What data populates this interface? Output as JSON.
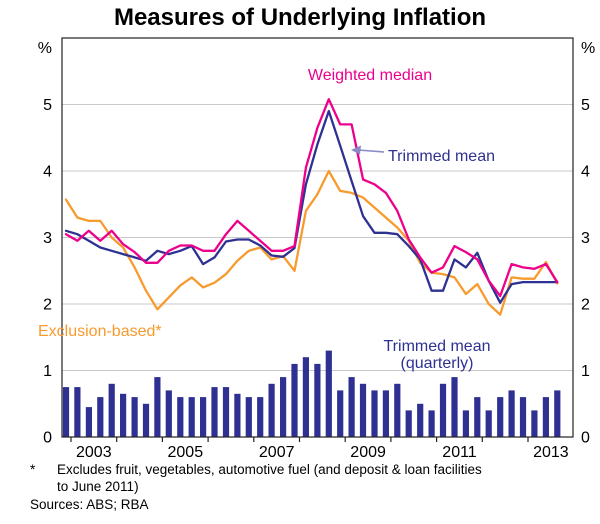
{
  "title": "Measures of Underlying Inflation",
  "axes": {
    "unit": "%",
    "y_ticks": [
      0,
      1,
      2,
      3,
      4,
      5
    ],
    "y_gridlines": [
      1,
      2,
      3,
      4,
      5
    ],
    "y_max": 6,
    "x_tick_years": [
      2003,
      2004,
      2005,
      2006,
      2007,
      2008,
      2009,
      2010,
      2011,
      2012,
      2013
    ],
    "x_year_labels": [
      2003,
      2005,
      2007,
      2009,
      2011,
      2013
    ]
  },
  "annotations": {
    "weighted_median": "Weighted median",
    "trimmed_mean": "Trimmed mean",
    "exclusion_based": "Exclusion-based*",
    "trimmed_mean_quarterly_line1": "Trimmed mean",
    "trimmed_mean_quarterly_line2": "(quarterly)"
  },
  "footnote": {
    "marker": "*",
    "line1": "Excludes fruit, vegetables, automotive fuel (and deposit & loan facilities",
    "line2": "to June 2011)",
    "sources": "Sources: ABS; RBA"
  },
  "colors": {
    "weighted_median": "#EC008C",
    "trimmed_mean": "#2E3192",
    "exclusion_based": "#F79B2E",
    "bars": "#2E3192",
    "gridline": "#C9C9C9",
    "axis": "#222222",
    "arrow": "#8A8AC8"
  },
  "chart_data": {
    "type": "line+bar",
    "title": "Measures of Underlying Inflation",
    "ylabel": "%",
    "ylim": [
      0,
      6
    ],
    "grid": true,
    "x_quarters": [
      "2002 Q4",
      "2003 Q1",
      "2003 Q2",
      "2003 Q3",
      "2003 Q4",
      "2004 Q1",
      "2004 Q2",
      "2004 Q3",
      "2004 Q4",
      "2005 Q1",
      "2005 Q2",
      "2005 Q3",
      "2005 Q4",
      "2006 Q1",
      "2006 Q2",
      "2006 Q3",
      "2006 Q4",
      "2007 Q1",
      "2007 Q2",
      "2007 Q3",
      "2007 Q4",
      "2008 Q1",
      "2008 Q2",
      "2008 Q3",
      "2008 Q4",
      "2009 Q1",
      "2009 Q2",
      "2009 Q3",
      "2009 Q4",
      "2010 Q1",
      "2010 Q2",
      "2010 Q3",
      "2010 Q4",
      "2011 Q1",
      "2011 Q2",
      "2011 Q3",
      "2011 Q4",
      "2012 Q1",
      "2012 Q2",
      "2012 Q3",
      "2012 Q4",
      "2013 Q1",
      "2013 Q2",
      "2013 Q3"
    ],
    "series": [
      {
        "name": "Weighted median",
        "type": "line",
        "color": "#EC008C",
        "values": [
          3.05,
          2.95,
          3.1,
          2.95,
          3.1,
          2.9,
          2.78,
          2.62,
          2.62,
          2.8,
          2.88,
          2.88,
          2.8,
          2.8,
          3.05,
          3.25,
          3.1,
          2.95,
          2.8,
          2.8,
          2.87,
          4.05,
          4.65,
          5.08,
          4.7,
          4.7,
          3.87,
          3.8,
          3.67,
          3.4,
          2.97,
          2.7,
          2.47,
          2.55,
          2.87,
          2.78,
          2.67,
          2.35,
          2.12,
          2.6,
          2.55,
          2.53,
          2.6,
          2.33
        ]
      },
      {
        "name": "Trimmed mean",
        "type": "line",
        "color": "#2E3192",
        "values": [
          3.1,
          3.05,
          2.95,
          2.85,
          2.8,
          2.75,
          2.7,
          2.65,
          2.8,
          2.75,
          2.8,
          2.87,
          2.6,
          2.7,
          2.94,
          2.97,
          2.97,
          2.88,
          2.73,
          2.71,
          2.84,
          3.8,
          4.4,
          4.9,
          4.38,
          3.85,
          3.32,
          3.07,
          3.07,
          3.05,
          2.87,
          2.67,
          2.2,
          2.2,
          2.67,
          2.55,
          2.77,
          2.35,
          2.02,
          2.3,
          2.33,
          2.33,
          2.33,
          2.33
        ]
      },
      {
        "name": "Exclusion-based",
        "type": "line",
        "color": "#F79B2E",
        "values": [
          3.57,
          3.3,
          3.25,
          3.25,
          3.0,
          2.85,
          2.55,
          2.2,
          1.92,
          2.1,
          2.28,
          2.4,
          2.25,
          2.32,
          2.45,
          2.65,
          2.8,
          2.85,
          2.67,
          2.72,
          2.5,
          3.4,
          3.65,
          4.0,
          3.7,
          3.67,
          3.6,
          3.45,
          3.3,
          3.15,
          2.95,
          2.62,
          2.47,
          2.45,
          2.4,
          2.15,
          2.3,
          2.0,
          1.84,
          2.4,
          2.38,
          2.38,
          2.63,
          2.31
        ]
      },
      {
        "name": "Trimmed mean (quarterly)",
        "type": "bar",
        "color": "#2E3192",
        "values": [
          0.75,
          0.75,
          0.45,
          0.6,
          0.8,
          0.65,
          0.6,
          0.5,
          0.9,
          0.7,
          0.6,
          0.6,
          0.6,
          0.75,
          0.75,
          0.65,
          0.6,
          0.6,
          0.8,
          0.9,
          1.1,
          1.2,
          1.1,
          1.3,
          0.7,
          0.9,
          0.8,
          0.7,
          0.7,
          0.8,
          0.4,
          0.5,
          0.4,
          0.8,
          0.9,
          0.4,
          0.6,
          0.4,
          0.6,
          0.7,
          0.6,
          0.4,
          0.6,
          0.7
        ]
      }
    ]
  }
}
